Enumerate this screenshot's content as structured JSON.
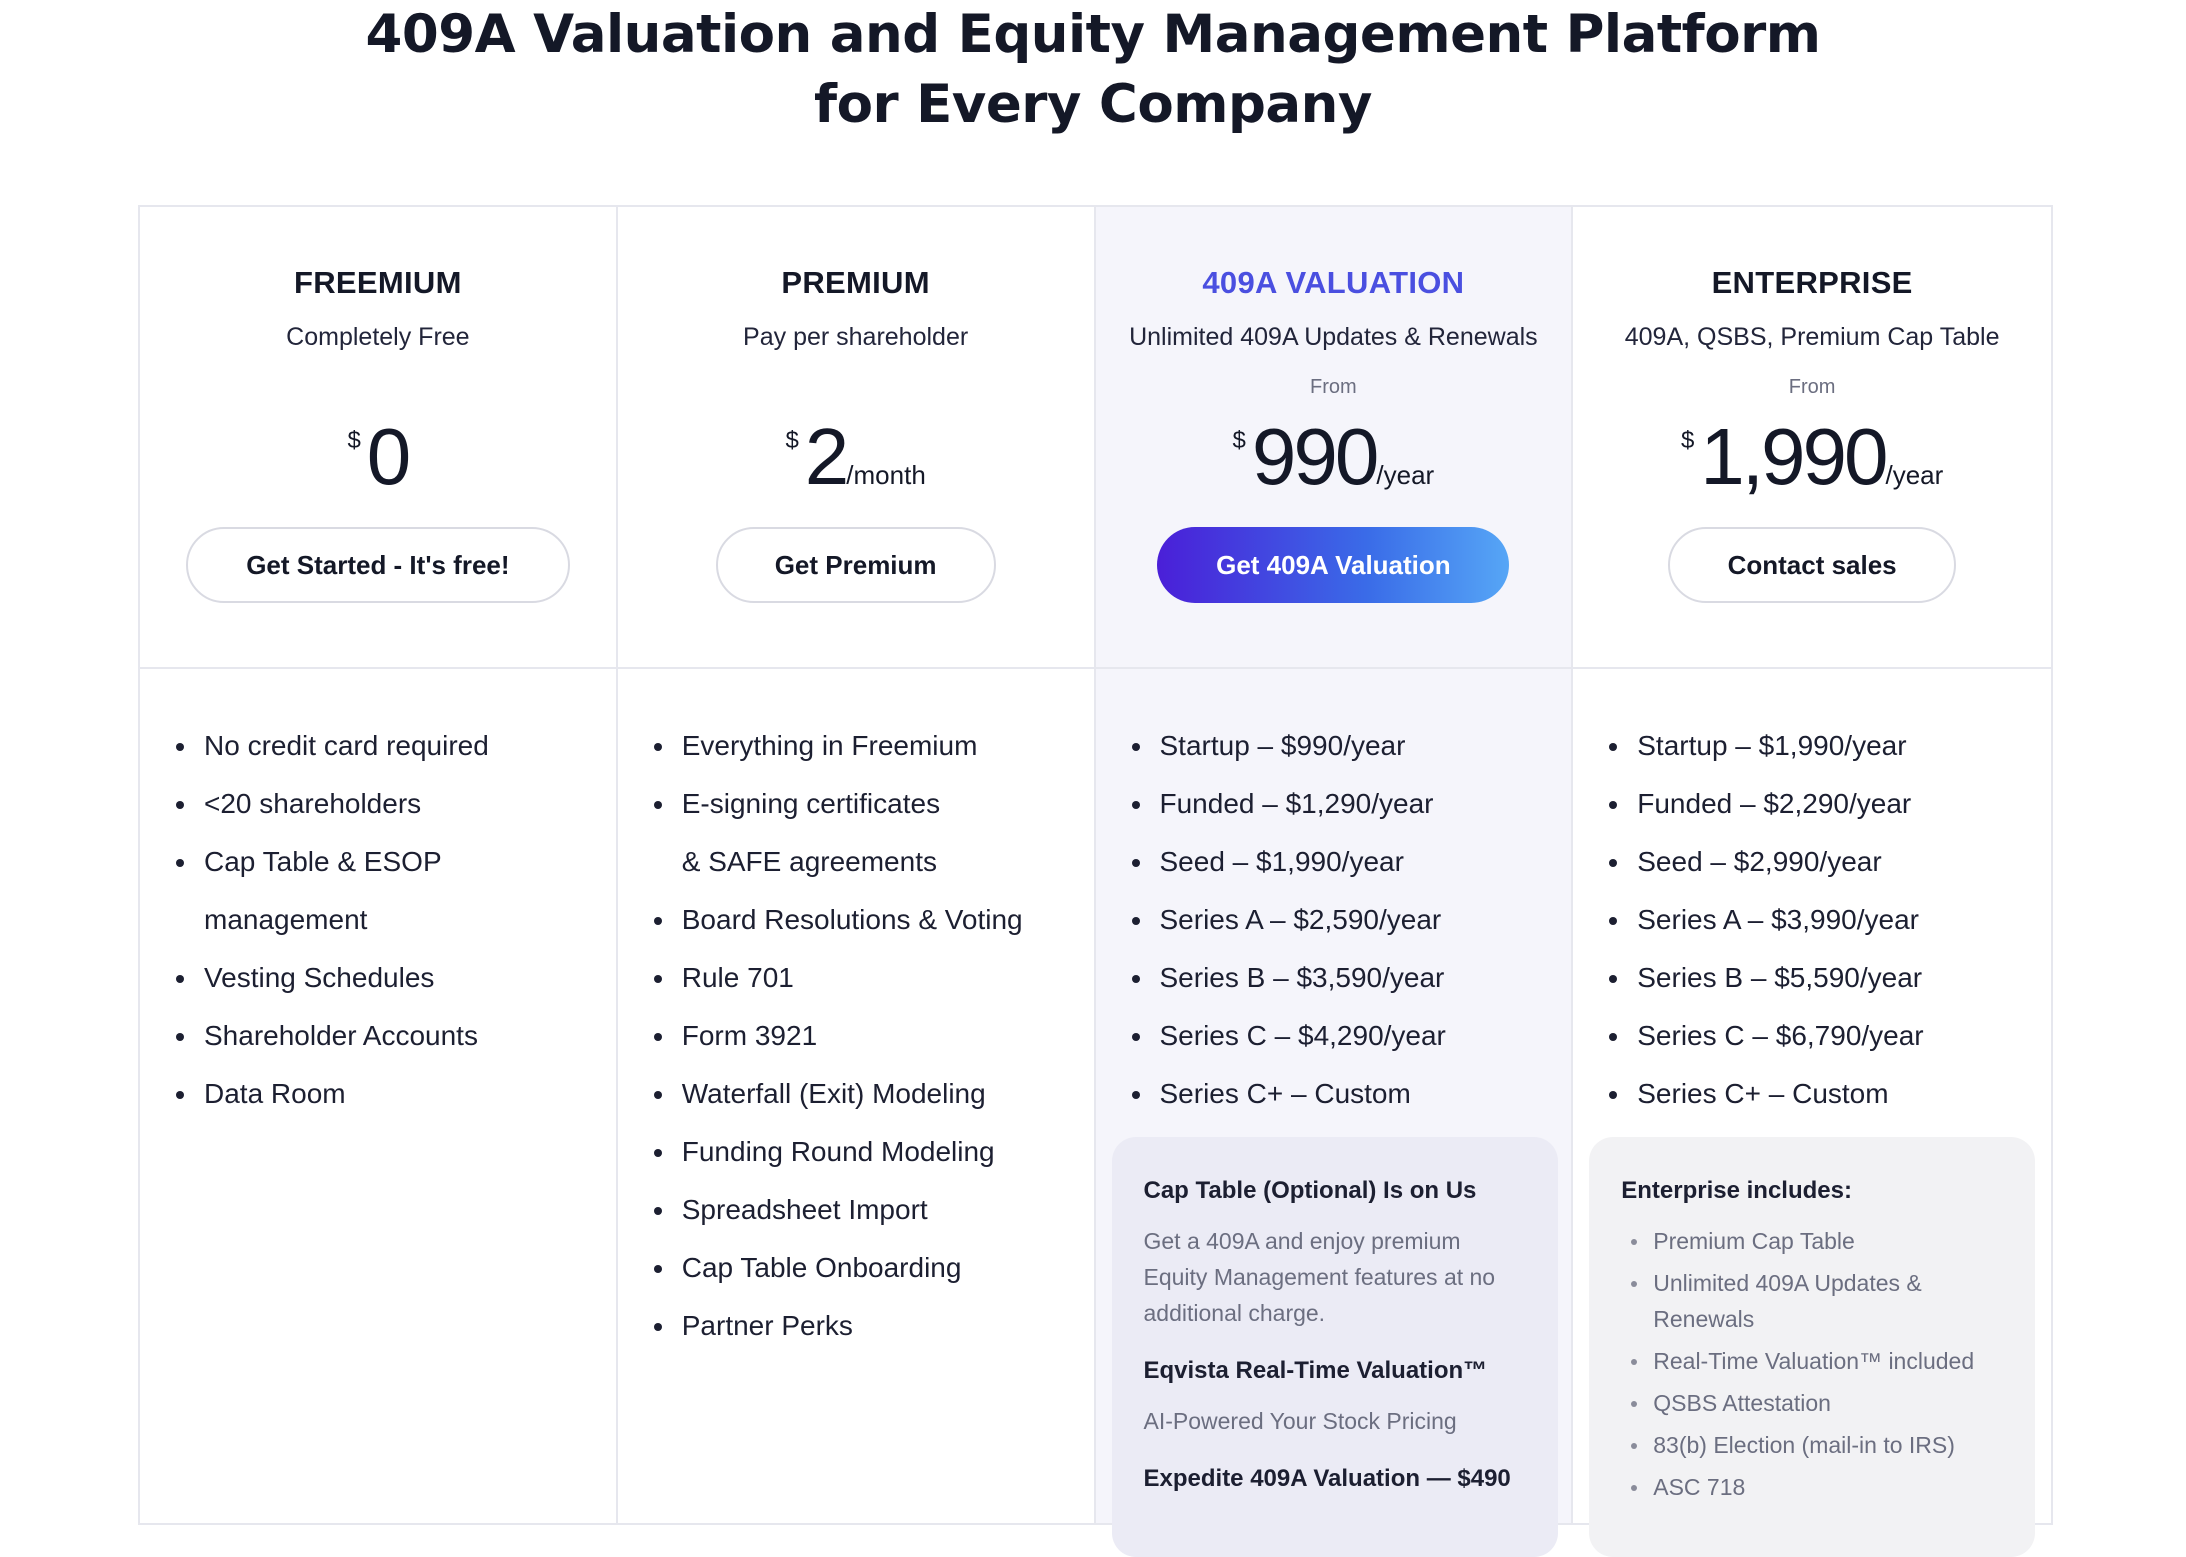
{
  "headline": {
    "line1": "409A Valuation and Equity Management Platform",
    "line2": "for Every Company"
  },
  "plans": [
    {
      "name": "FREEMIUM",
      "subtitle": "Completely Free",
      "from": "",
      "currency": "$",
      "amount": "0",
      "period": "",
      "cta": "Get Started - It's free!",
      "features": [
        "No credit card required",
        "<20 shareholders",
        "Cap Table & ESOP",
        "management",
        "Vesting Schedules",
        "Shareholder Accounts",
        "Data Room"
      ]
    },
    {
      "name": "PREMIUM",
      "subtitle": "Pay per shareholder",
      "from": "",
      "currency": "$",
      "amount": "2",
      "period": "/month",
      "cta": "Get Premium",
      "features": [
        "Everything in Freemium",
        "E-signing certificates",
        "& SAFE agreements",
        "Board Resolutions & Voting",
        "Rule 701",
        "Form 3921",
        "Waterfall (Exit) Modeling",
        "Funding Round Modeling",
        "Spreadsheet Import",
        "Cap Table Onboarding",
        "Partner Perks"
      ]
    },
    {
      "name": "409A VALUATION",
      "subtitle": "Unlimited 409A Updates & Renewals",
      "from": "From",
      "currency": "$",
      "amount": "990",
      "period": "/year",
      "cta": "Get 409A Valuation",
      "features": [
        "Startup – $990/year",
        "Funded – $1,290/year",
        "Seed – $1,990/year",
        "Series A – $2,590/year",
        "Series B – $3,590/year",
        "Series C – $4,290/year",
        "Series C+ – Custom"
      ],
      "box": {
        "title1": "Cap Table (Optional) Is on Us",
        "text1": "Get a 409A and enjoy premium Equity Management features at no additional charge.",
        "title2": "Eqvista Real-Time Valuation™",
        "text2": "AI-Powered Your Stock Pricing",
        "title3": "Expedite 409A Valuation — $490"
      }
    },
    {
      "name": "ENTERPRISE",
      "subtitle": "409A, QSBS, Premium Cap Table",
      "from": "From",
      "currency": "$",
      "amount": "1,990",
      "period": "/year",
      "cta": "Contact sales",
      "features": [
        "Startup – $1,990/year",
        "Funded – $2,290/year",
        "Seed – $2,990/year",
        "Series A – $3,990/year",
        "Series B – $5,590/year",
        "Series C – $6,790/year",
        "Series C+ – Custom"
      ],
      "box": {
        "title": "Enterprise includes:",
        "items": [
          "Premium Cap Table",
          "Unlimited 409A Updates & Renewals",
          "Real-Time Valuation™ included",
          "QSBS Attestation",
          "83(b) Election  (mail-in to IRS)",
          "ASC 718"
        ]
      }
    }
  ]
}
